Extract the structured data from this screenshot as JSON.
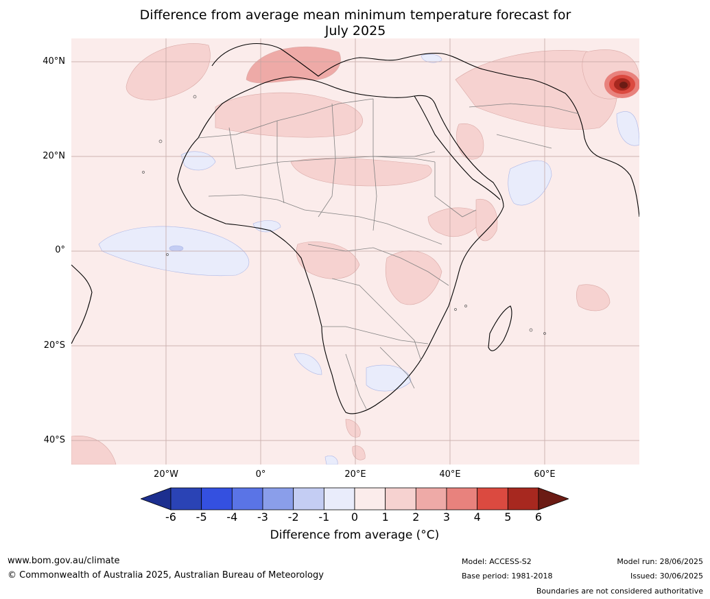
{
  "title_line1": "Difference from average mean minimum temperature forecast for",
  "title_line2": "July 2025",
  "axes": {
    "lat_labels": [
      "40°N",
      "20°N",
      "0°",
      "20°S",
      "40°S"
    ],
    "lat_values": [
      40,
      20,
      0,
      -20,
      -40
    ],
    "lon_labels": [
      "20°W",
      "0°",
      "20°E",
      "40°E",
      "60°E"
    ],
    "lon_values": [
      -20,
      0,
      20,
      40,
      60
    ],
    "lon_range": [
      -40,
      80
    ],
    "lat_range": [
      -45,
      45
    ]
  },
  "colorbar": {
    "label": "Difference from average (°C)",
    "ticks": [
      "-6",
      "-5",
      "-4",
      "-3",
      "-2",
      "-1",
      "0",
      "1",
      "2",
      "3",
      "4",
      "5",
      "6"
    ],
    "colors": [
      "#1c2f8f",
      "#2a43b5",
      "#3450e0",
      "#5a74e6",
      "#8a9eea",
      "#c4cdf3",
      "#e9ecfb",
      "#fbeceb",
      "#f6d2d0",
      "#eeaaa7",
      "#e8827d",
      "#db4a40",
      "#a7281f",
      "#6b1b14"
    ]
  },
  "map": {
    "ocean_color": "#fbeceb",
    "region": "Africa"
  },
  "footer": {
    "website": "www.bom.gov.au/climate",
    "copyright": "© Commonwealth of Australia 2025, Australian Bureau of Meteorology",
    "model": "Model: ACCESS-S2",
    "base_period": "Base period: 1981-2018",
    "model_run": "Model run: 28/06/2025",
    "issued": "Issued: 30/06/2025",
    "disclaimer": "Boundaries are not considered authoritative"
  }
}
